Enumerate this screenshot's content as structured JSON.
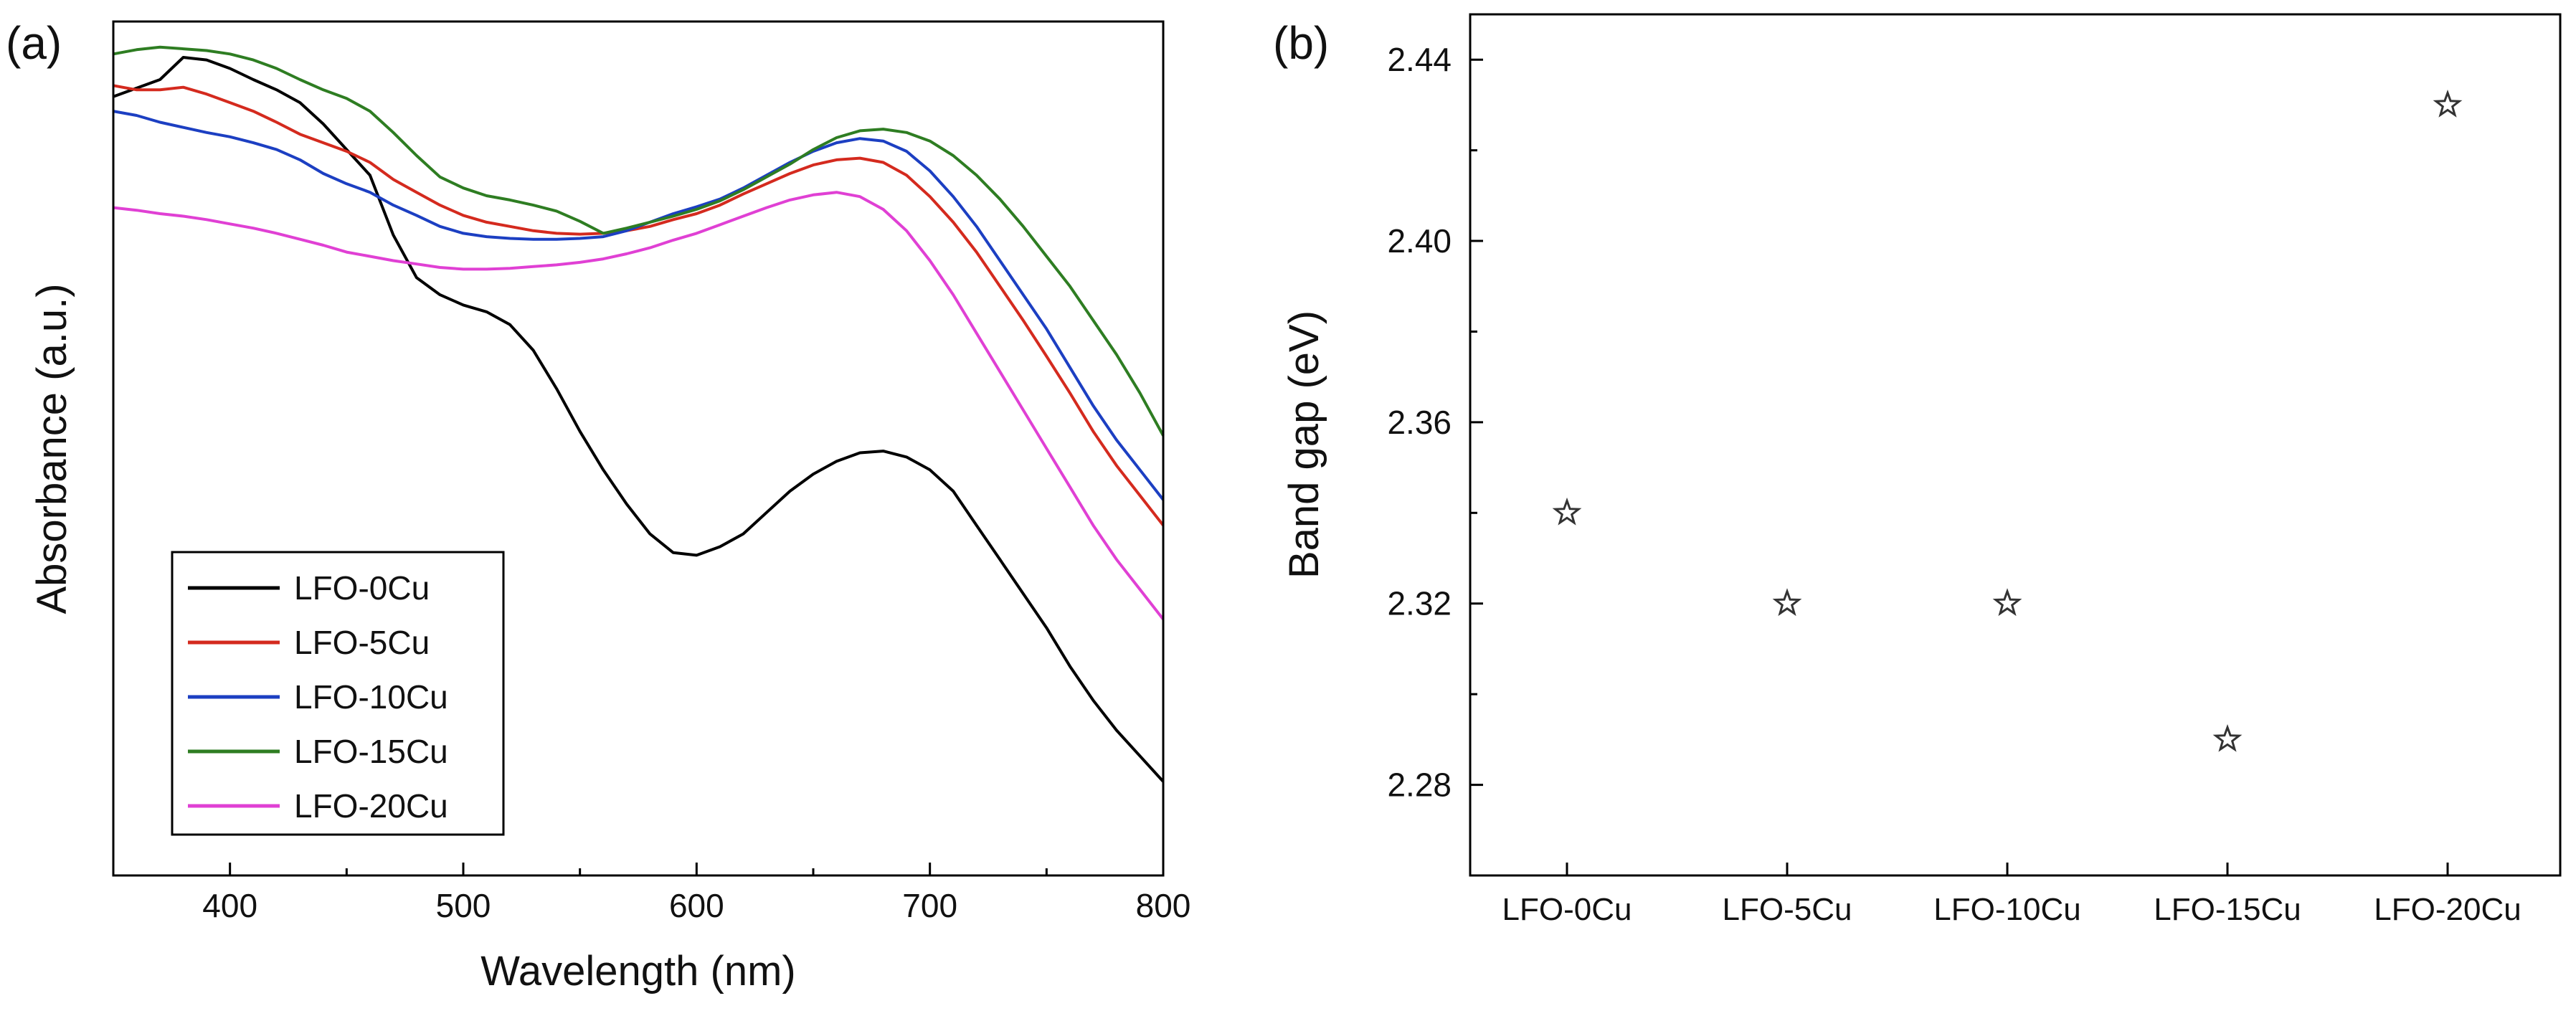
{
  "chart_data": [
    {
      "panel": "(a)",
      "type": "line",
      "title": "",
      "xlabel": "Wavelength (nm)",
      "ylabel": "Absorbance (a.u.)",
      "xlim": [
        350,
        800
      ],
      "ylim": [
        0,
        1
      ],
      "xticks": [
        400,
        500,
        600,
        700,
        800
      ],
      "xtick_labels": [
        "400",
        "500",
        "600",
        "700",
        "800"
      ],
      "yticks": [],
      "legend_position": "bottom-left",
      "series": [
        {
          "name": "LFO-0Cu",
          "color": "#000000",
          "x": [
            350,
            360,
            370,
            380,
            390,
            400,
            410,
            420,
            430,
            440,
            450,
            460,
            470,
            480,
            490,
            500,
            510,
            520,
            530,
            540,
            550,
            560,
            570,
            580,
            590,
            600,
            610,
            620,
            630,
            640,
            650,
            660,
            670,
            680,
            690,
            700,
            710,
            720,
            730,
            740,
            750,
            760,
            770,
            780,
            790,
            800
          ],
          "values": [
            0.912,
            0.922,
            0.932,
            0.958,
            0.955,
            0.945,
            0.932,
            0.92,
            0.905,
            0.88,
            0.85,
            0.82,
            0.75,
            0.7,
            0.68,
            0.668,
            0.66,
            0.645,
            0.615,
            0.57,
            0.52,
            0.475,
            0.435,
            0.4,
            0.378,
            0.375,
            0.385,
            0.4,
            0.425,
            0.45,
            0.47,
            0.485,
            0.495,
            0.497,
            0.49,
            0.475,
            0.45,
            0.41,
            0.37,
            0.33,
            0.29,
            0.245,
            0.205,
            0.17,
            0.14,
            0.11
          ]
        },
        {
          "name": "LFO-5Cu",
          "color": "#d42a1e",
          "x": [
            350,
            360,
            370,
            380,
            390,
            400,
            410,
            420,
            430,
            440,
            450,
            460,
            470,
            480,
            490,
            500,
            510,
            520,
            530,
            540,
            550,
            560,
            570,
            580,
            590,
            600,
            610,
            620,
            630,
            640,
            650,
            660,
            670,
            680,
            690,
            700,
            710,
            720,
            730,
            740,
            750,
            760,
            770,
            780,
            790,
            800
          ],
          "values": [
            0.925,
            0.92,
            0.92,
            0.923,
            0.915,
            0.905,
            0.895,
            0.882,
            0.868,
            0.858,
            0.848,
            0.835,
            0.815,
            0.8,
            0.785,
            0.773,
            0.765,
            0.76,
            0.755,
            0.752,
            0.751,
            0.752,
            0.755,
            0.76,
            0.768,
            0.775,
            0.785,
            0.798,
            0.81,
            0.822,
            0.832,
            0.838,
            0.84,
            0.835,
            0.82,
            0.795,
            0.765,
            0.73,
            0.69,
            0.65,
            0.608,
            0.565,
            0.52,
            0.48,
            0.445,
            0.41
          ]
        },
        {
          "name": "LFO-10Cu",
          "color": "#1c3fc2",
          "x": [
            350,
            360,
            370,
            380,
            390,
            400,
            410,
            420,
            430,
            440,
            450,
            460,
            470,
            480,
            490,
            500,
            510,
            520,
            530,
            540,
            550,
            560,
            570,
            580,
            590,
            600,
            610,
            620,
            630,
            640,
            650,
            660,
            670,
            680,
            690,
            700,
            710,
            720,
            730,
            740,
            750,
            760,
            770,
            780,
            790,
            800
          ],
          "values": [
            0.895,
            0.89,
            0.882,
            0.876,
            0.87,
            0.865,
            0.858,
            0.85,
            0.838,
            0.822,
            0.81,
            0.8,
            0.785,
            0.773,
            0.76,
            0.752,
            0.748,
            0.746,
            0.745,
            0.745,
            0.746,
            0.748,
            0.755,
            0.765,
            0.775,
            0.783,
            0.792,
            0.805,
            0.82,
            0.835,
            0.848,
            0.858,
            0.863,
            0.86,
            0.848,
            0.825,
            0.795,
            0.76,
            0.72,
            0.68,
            0.64,
            0.595,
            0.55,
            0.51,
            0.475,
            0.44
          ]
        },
        {
          "name": "LFO-15Cu",
          "color": "#2e7d22",
          "x": [
            350,
            360,
            370,
            380,
            390,
            400,
            410,
            420,
            430,
            440,
            450,
            460,
            470,
            480,
            490,
            500,
            510,
            520,
            530,
            540,
            550,
            560,
            570,
            580,
            590,
            600,
            610,
            620,
            630,
            640,
            650,
            660,
            670,
            680,
            690,
            700,
            710,
            720,
            730,
            740,
            750,
            760,
            770,
            780,
            790,
            800
          ],
          "values": [
            0.962,
            0.967,
            0.97,
            0.968,
            0.966,
            0.962,
            0.955,
            0.945,
            0.932,
            0.92,
            0.91,
            0.895,
            0.87,
            0.843,
            0.818,
            0.805,
            0.796,
            0.791,
            0.785,
            0.778,
            0.766,
            0.752,
            0.758,
            0.765,
            0.772,
            0.78,
            0.79,
            0.803,
            0.818,
            0.833,
            0.85,
            0.864,
            0.872,
            0.874,
            0.87,
            0.86,
            0.843,
            0.82,
            0.792,
            0.76,
            0.725,
            0.69,
            0.65,
            0.61,
            0.565,
            0.515
          ]
        },
        {
          "name": "LFO-20Cu",
          "color": "#e040d4",
          "x": [
            350,
            360,
            370,
            380,
            390,
            400,
            410,
            420,
            430,
            440,
            450,
            460,
            470,
            480,
            490,
            500,
            510,
            520,
            530,
            540,
            550,
            560,
            570,
            580,
            590,
            600,
            610,
            620,
            630,
            640,
            650,
            660,
            670,
            680,
            690,
            700,
            710,
            720,
            730,
            740,
            750,
            760,
            770,
            780,
            790,
            800
          ],
          "values": [
            0.782,
            0.779,
            0.775,
            0.772,
            0.768,
            0.763,
            0.758,
            0.752,
            0.745,
            0.738,
            0.73,
            0.725,
            0.72,
            0.716,
            0.712,
            0.71,
            0.71,
            0.711,
            0.713,
            0.715,
            0.718,
            0.722,
            0.728,
            0.735,
            0.744,
            0.752,
            0.762,
            0.772,
            0.782,
            0.791,
            0.797,
            0.8,
            0.795,
            0.78,
            0.755,
            0.72,
            0.68,
            0.635,
            0.59,
            0.545,
            0.5,
            0.455,
            0.41,
            0.37,
            0.335,
            0.3
          ]
        }
      ]
    },
    {
      "panel": "(b)",
      "type": "scatter",
      "title": "",
      "xlabel": "",
      "ylabel": "Band gap (eV)",
      "marker": "star",
      "categories": [
        "LFO-0Cu",
        "LFO-5Cu",
        "LFO-10Cu",
        "LFO-15Cu",
        "LFO-20Cu"
      ],
      "values": [
        2.34,
        2.32,
        2.32,
        2.29,
        2.43
      ],
      "ylim": [
        2.26,
        2.45
      ],
      "yticks": [
        2.28,
        2.32,
        2.36,
        2.4,
        2.44
      ],
      "ytick_labels": [
        "2.28",
        "2.32",
        "2.36",
        "2.40",
        "2.44"
      ]
    }
  ]
}
